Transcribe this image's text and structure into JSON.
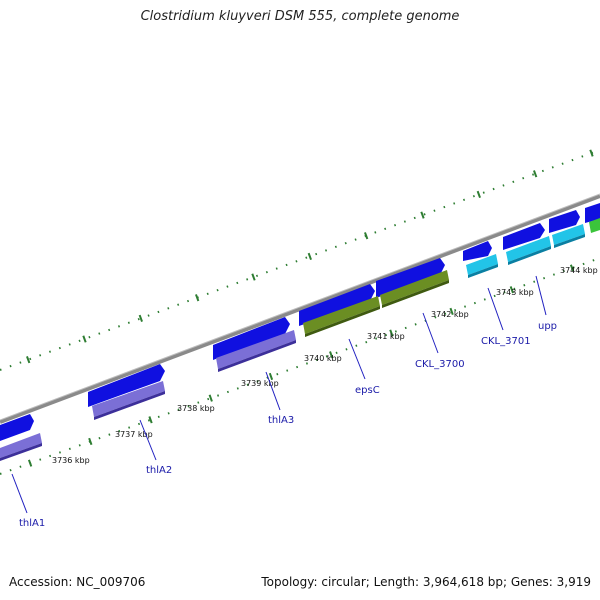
{
  "title": "Clostridium kluyveri DSM 555, complete genome",
  "footer": {
    "accession": "Accession: NC_009706",
    "summary": "Topology: circular; Length: 3,964,618 bp; Genes: 3,919"
  },
  "colors": {
    "backbone": "#8a8a8a",
    "gene": "#1010e0",
    "cds_purple": "#7b6fd6",
    "cds_olive": "#6b8e23",
    "cds_cyan": "#22c4e8",
    "cds_green": "#3bc43b",
    "ticks": "#2e7d32",
    "label_line": "#2020c0",
    "label_text": "#1a1aa8"
  },
  "kbp_labels": [
    "3736 kbp",
    "3737 kbp",
    "3738 kbp",
    "3739 kbp",
    "3740 kbp",
    "3741 kbp",
    "3742 kbp",
    "3743 kbp",
    "3744 kbp"
  ],
  "gene_labels": [
    "thlA1",
    "thlA2",
    "thlA3",
    "epsC",
    "CKL_3700",
    "CKL_3701",
    "upp"
  ]
}
